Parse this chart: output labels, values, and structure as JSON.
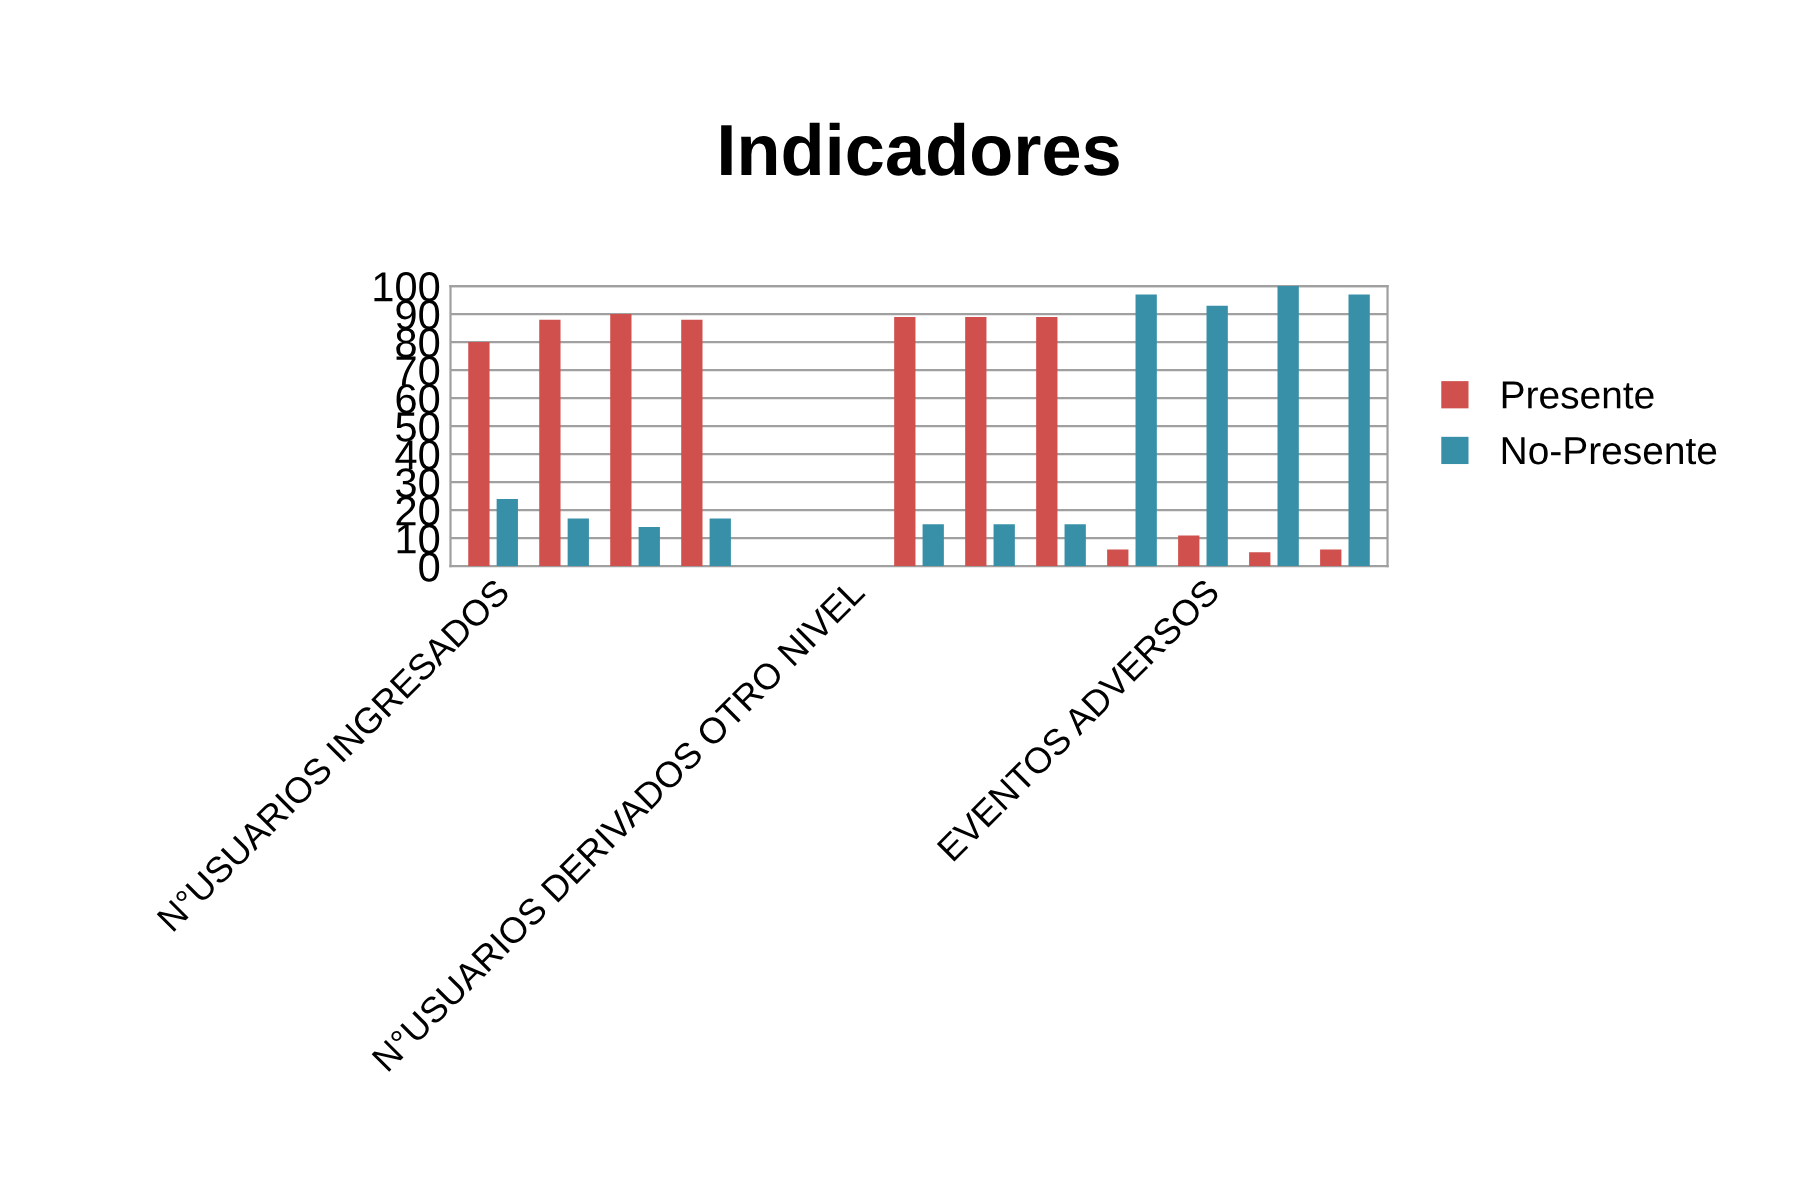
{
  "chart_data": {
    "type": "bar",
    "title": "Indicadores",
    "categories": [
      "N°USUARIOS INGRESADOS",
      null,
      null,
      null,
      null,
      "N°USUARIOS DERIVADOS OTRO NIVEL",
      null,
      null,
      null,
      null,
      "EVENTOS ADVERSOS",
      null,
      null
    ],
    "series": [
      {
        "name": "Presente",
        "color": "#d0504d",
        "values": [
          80,
          88,
          90,
          88,
          null,
          null,
          89,
          89,
          89,
          6,
          11,
          5,
          6
        ]
      },
      {
        "name": "No-Presente",
        "color": "#3790a8",
        "values": [
          24,
          17,
          14,
          17,
          null,
          null,
          15,
          15,
          15,
          97,
          93,
          100,
          97
        ]
      }
    ],
    "ylim": [
      0,
      100
    ],
    "yticks": [
      0,
      10,
      20,
      30,
      40,
      50,
      60,
      70,
      80,
      90,
      100
    ],
    "grid": "y",
    "legend": "right"
  }
}
